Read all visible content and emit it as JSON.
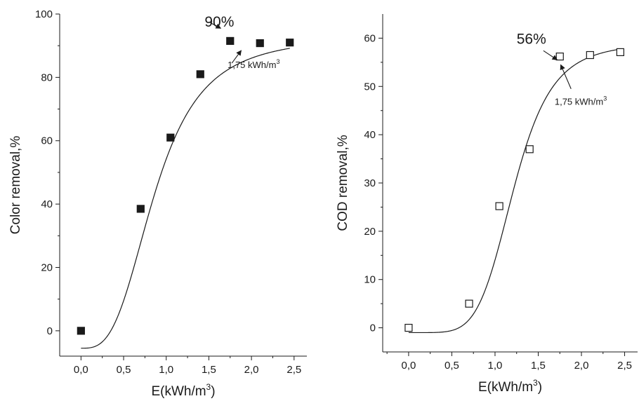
{
  "chart_data": [
    {
      "type": "scatter",
      "xlabel": "E(kWh/m",
      "xlabel_sup": "3",
      "xlabel_close": ")",
      "ylabel": "Color removal,%",
      "xlim": [
        -0.25,
        2.65
      ],
      "ylim": [
        -8,
        100
      ],
      "x_ticks": [
        0.0,
        0.5,
        1.0,
        1.5,
        2.0,
        2.5
      ],
      "x_tick_labels": [
        "0,0",
        "0,5",
        "1,0",
        "1,5",
        "2,0",
        "2,5"
      ],
      "y_ticks": [
        0,
        20,
        40,
        60,
        80,
        100
      ],
      "y_tick_labels": [
        "0",
        "20",
        "40",
        "60",
        "80",
        "100"
      ],
      "marker": "filled-square",
      "color": "#1a1a1a",
      "grid": false,
      "series": [
        {
          "x": [
            0.0,
            0.7,
            1.05,
            1.4,
            1.75,
            2.1,
            2.45
          ],
          "y": [
            0.0,
            38.5,
            61.0,
            81.0,
            91.5,
            90.8,
            91.0
          ]
        }
      ],
      "fit_curve": {
        "model": "sigmoid",
        "A1": -5.5,
        "A2": 93,
        "x0": 0.87,
        "p": 3.1
      },
      "annotations": [
        {
          "text": "90%",
          "kind": "large",
          "x": 1.45,
          "y": 96
        },
        {
          "text": "1,75 kWh/m",
          "sup": "3",
          "kind": "small",
          "x": 1.72,
          "y": 83
        }
      ],
      "arrows": [
        {
          "from": [
            1.5,
            97.5
          ],
          "to": [
            1.64,
            95.5
          ]
        },
        {
          "from": [
            1.77,
            84.5
          ],
          "to": [
            1.88,
            88.5
          ]
        }
      ]
    },
    {
      "type": "scatter",
      "xlabel": "E(kWh/m",
      "xlabel_sup": "3",
      "xlabel_close": ")",
      "ylabel": "COD removal,%",
      "xlim": [
        -0.3,
        2.65
      ],
      "ylim": [
        -5,
        65
      ],
      "x_ticks": [
        0.0,
        0.5,
        1.0,
        1.5,
        2.0,
        2.5
      ],
      "x_tick_labels": [
        "0,0",
        "0,5",
        "1,0",
        "1,5",
        "2,0",
        "2,5"
      ],
      "y_ticks": [
        0,
        10,
        20,
        30,
        40,
        50,
        60
      ],
      "y_tick_labels": [
        "0",
        "10",
        "20",
        "30",
        "40",
        "50",
        "60"
      ],
      "marker": "open-square",
      "color": "#1a1a1a",
      "grid": false,
      "series": [
        {
          "x": [
            0.0,
            0.7,
            1.05,
            1.4,
            1.75,
            2.1,
            2.45
          ],
          "y": [
            0.0,
            5.0,
            25.2,
            37.0,
            56.2,
            56.5,
            57.1
          ]
        }
      ],
      "fit_curve": {
        "model": "sigmoid",
        "A1": -1.0,
        "A2": 59,
        "x0": 1.22,
        "p": 5.5
      },
      "annotations": [
        {
          "text": "56%",
          "kind": "large",
          "x": 1.25,
          "y": 58.8
        },
        {
          "text": "1,75 kWh/m",
          "sup": "3",
          "kind": "small",
          "x": 1.69,
          "y": 46.2
        }
      ],
      "arrows": [
        {
          "from": [
            1.56,
            57.4
          ],
          "to": [
            1.72,
            55.5
          ]
        },
        {
          "from": [
            1.88,
            49.5
          ],
          "to": [
            1.76,
            54.5
          ]
        }
      ]
    }
  ]
}
